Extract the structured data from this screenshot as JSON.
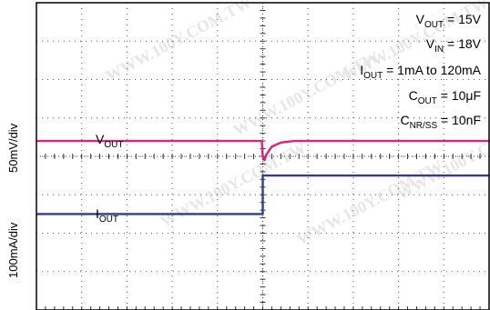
{
  "chart_data": {
    "type": "line",
    "title": "",
    "ylabel": {
      "ioutScale": "100mA/div",
      "voutScale": "50mV/div"
    },
    "xlabel": "",
    "grid": true,
    "divisions": {
      "x": 10,
      "y": 8
    },
    "conditions": [
      {
        "main": "V",
        "sub": "OUT",
        "rest": " = 15V"
      },
      {
        "main": "V",
        "sub": "IN",
        "rest": " = 18V"
      },
      {
        "main": "I",
        "sub": "OUT",
        "rest": " = 1mA to 120mA"
      },
      {
        "main": "C",
        "sub": "OUT",
        "rest": " = 10μF"
      },
      {
        "main": "C",
        "sub": "NR/SS",
        "rest": " = 10nF"
      }
    ],
    "series": [
      {
        "name": {
          "main": "V",
          "sub": "OUT"
        },
        "color": "#e0207a",
        "points": [
          [
            0,
            3.6
          ],
          [
            4.98,
            3.6
          ],
          [
            5.0,
            4.0
          ],
          [
            5.04,
            4.1
          ],
          [
            5.08,
            3.95
          ],
          [
            5.2,
            3.75
          ],
          [
            5.4,
            3.64
          ],
          [
            5.7,
            3.6
          ],
          [
            10,
            3.6
          ]
        ]
      },
      {
        "name": {
          "main": "I",
          "sub": "OUT"
        },
        "color": "#2e3d8f",
        "points": [
          [
            0,
            5.5
          ],
          [
            5.0,
            5.5
          ],
          [
            5.0,
            4.5
          ],
          [
            10,
            4.5
          ]
        ]
      }
    ],
    "watermark": "WWW.100Y.COM.TW"
  }
}
